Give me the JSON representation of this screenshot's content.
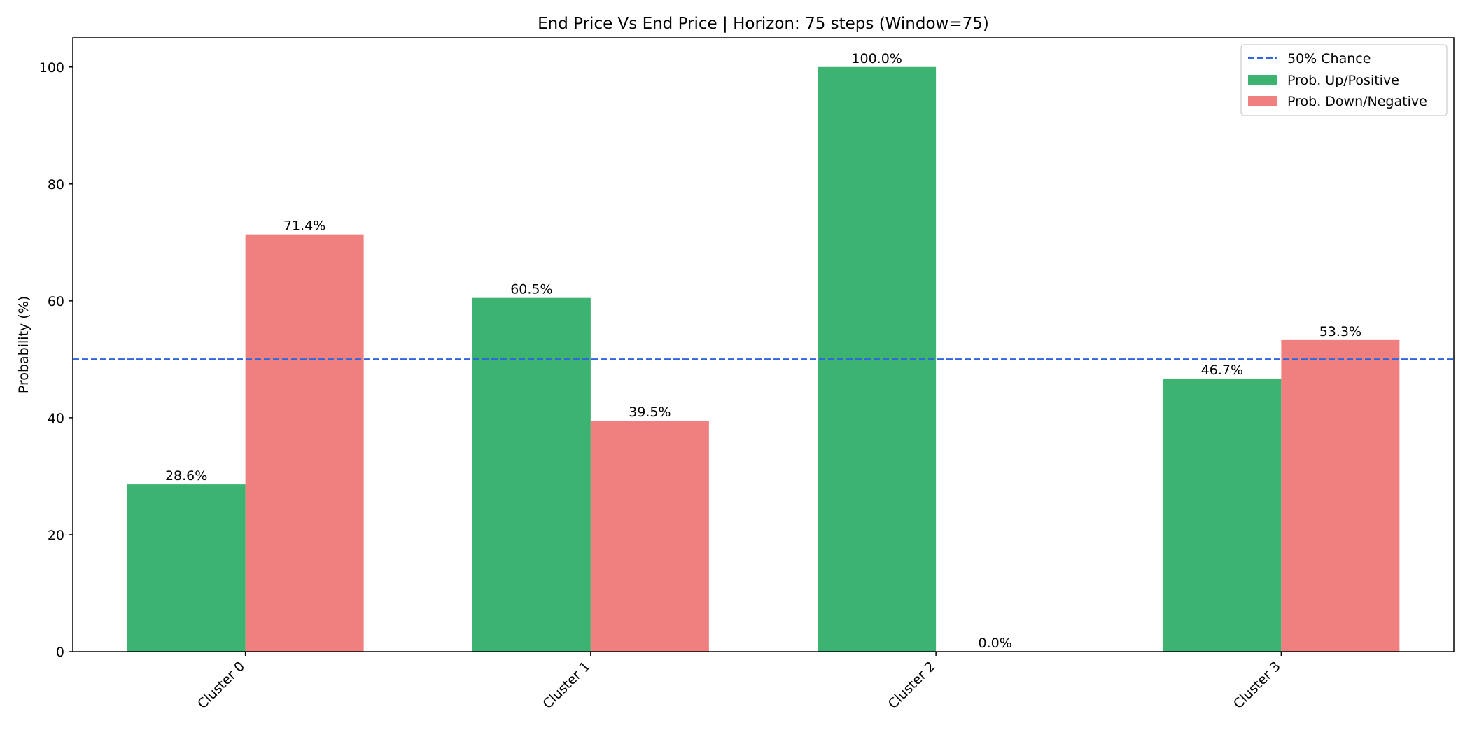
{
  "chart_data": {
    "type": "bar",
    "title": "End Price Vs End Price | Horizon: 75 steps (Window=75)",
    "xlabel": "",
    "ylabel": "Probability (%)",
    "ylim": [
      0,
      105
    ],
    "yticks": [
      0,
      20,
      40,
      60,
      80,
      100
    ],
    "categories": [
      "Cluster 0",
      "Cluster 1",
      "Cluster 2",
      "Cluster 3"
    ],
    "series": [
      {
        "name": "Prob. Up/Positive",
        "color": "#3cb371",
        "values": [
          28.6,
          60.5,
          100.0,
          46.7
        ],
        "labels": [
          "28.6%",
          "60.5%",
          "100.0%",
          "46.7%"
        ]
      },
      {
        "name": "Prob. Down/Negative",
        "color": "#f08080",
        "values": [
          71.4,
          39.5,
          0.0,
          53.3
        ],
        "labels": [
          "71.4%",
          "39.5%",
          "0.0%",
          "53.3%"
        ]
      }
    ],
    "reference_line": {
      "name": "50% Chance",
      "value": 50,
      "color": "#2f66e0",
      "style": "dashed"
    },
    "legend_placement": "top-right",
    "grid": false
  }
}
